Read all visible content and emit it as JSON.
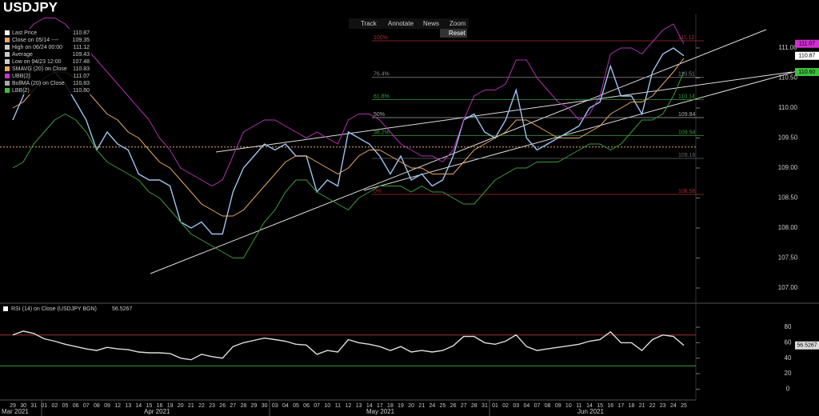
{
  "title": "USDJPY",
  "toolbar": [
    "Track",
    "Annotate",
    "News",
    "Zoom",
    "Reset"
  ],
  "chart_data": [
    {
      "type": "line",
      "categories": [
        "29",
        "30",
        "31",
        "01",
        "02",
        "05",
        "06",
        "07",
        "08",
        "09",
        "12",
        "13",
        "14",
        "15",
        "16",
        "19",
        "20",
        "21",
        "22",
        "23",
        "26",
        "27",
        "28",
        "29",
        "30",
        "03",
        "04",
        "05",
        "06",
        "07",
        "10",
        "11",
        "12",
        "13",
        "14",
        "17",
        "18",
        "19",
        "20",
        "21",
        "24",
        "25",
        "26",
        "27",
        "28",
        "31",
        "01",
        "02",
        "03",
        "04",
        "07",
        "08",
        "09",
        "10",
        "11",
        "14",
        "15",
        "16",
        "17",
        "18",
        "21",
        "22",
        "23",
        "24",
        "25"
      ],
      "months": [
        "Mar 2021",
        "Apr 2021",
        "May 2021",
        "Jun 2021"
      ],
      "series": [
        {
          "name": "Last Price",
          "color": "#9cc3f0",
          "values": [
            109.8,
            110.2,
            110.8,
            110.7,
            110.6,
            110.4,
            110.1,
            109.8,
            109.3,
            109.6,
            109.4,
            109.3,
            108.9,
            108.8,
            108.8,
            108.7,
            108.1,
            108.0,
            108.1,
            107.9,
            107.9,
            108.6,
            109.0,
            109.2,
            109.4,
            109.3,
            109.4,
            109.2,
            109.2,
            108.6,
            108.8,
            108.7,
            109.6,
            109.5,
            109.4,
            109.2,
            108.9,
            109.2,
            108.8,
            108.9,
            108.7,
            108.8,
            109.2,
            109.8,
            109.9,
            109.6,
            109.5,
            109.8,
            110.3,
            109.5,
            109.3,
            109.4,
            109.5,
            109.6,
            109.7,
            110.0,
            110.1,
            110.7,
            110.2,
            110.2,
            109.9,
            110.6,
            110.9,
            111.0,
            110.87
          ]
        },
        {
          "name": "SMAVG (20) on Close",
          "color": "#e8a860",
          "values": [
            110.0,
            110.1,
            110.3,
            110.5,
            110.6,
            110.6,
            110.5,
            110.3,
            110.1,
            109.9,
            109.8,
            109.6,
            109.5,
            109.3,
            109.1,
            109.0,
            108.8,
            108.6,
            108.4,
            108.3,
            108.2,
            108.2,
            108.3,
            108.5,
            108.7,
            108.9,
            109.1,
            109.2,
            109.2,
            109.1,
            109.0,
            108.9,
            109.0,
            109.2,
            109.3,
            109.3,
            109.2,
            109.1,
            109.0,
            109.0,
            108.9,
            108.9,
            108.9,
            109.1,
            109.3,
            109.4,
            109.5,
            109.6,
            109.8,
            109.8,
            109.7,
            109.6,
            109.5,
            109.5,
            109.5,
            109.6,
            109.7,
            109.9,
            110.0,
            110.1,
            110.1,
            110.2,
            110.4,
            110.6,
            110.83
          ]
        },
        {
          "name": "UBB(2)",
          "color": "#b030b0",
          "values": [
            110.9,
            111.2,
            111.4,
            111.5,
            111.5,
            111.4,
            111.2,
            111.0,
            110.8,
            110.6,
            110.4,
            110.2,
            110.0,
            109.8,
            109.5,
            109.3,
            109.0,
            108.9,
            108.8,
            108.7,
            108.8,
            109.2,
            109.6,
            109.7,
            109.8,
            109.8,
            109.7,
            109.6,
            109.5,
            109.6,
            109.5,
            109.4,
            109.8,
            109.9,
            109.9,
            109.8,
            109.6,
            109.4,
            109.3,
            109.2,
            109.2,
            109.1,
            109.3,
            109.8,
            110.2,
            110.3,
            110.3,
            110.4,
            110.8,
            110.8,
            110.5,
            110.3,
            110.1,
            110.0,
            109.8,
            109.9,
            110.2,
            110.9,
            111.0,
            111.0,
            110.9,
            111.1,
            111.3,
            111.4,
            111.07
          ]
        },
        {
          "name": "LBB(2)",
          "color": "#3c9a3c",
          "values": [
            109.0,
            109.1,
            109.4,
            109.6,
            109.8,
            109.9,
            109.8,
            109.6,
            109.3,
            109.1,
            109.0,
            108.9,
            108.8,
            108.6,
            108.5,
            108.3,
            108.1,
            107.9,
            107.8,
            107.7,
            107.6,
            107.5,
            107.5,
            107.8,
            108.1,
            108.3,
            108.6,
            108.8,
            108.8,
            108.6,
            108.5,
            108.4,
            108.3,
            108.5,
            108.6,
            108.7,
            108.7,
            108.7,
            108.6,
            108.7,
            108.6,
            108.6,
            108.5,
            108.4,
            108.4,
            108.6,
            108.8,
            108.9,
            109.0,
            109.0,
            109.1,
            109.1,
            109.1,
            109.2,
            109.3,
            109.4,
            109.4,
            109.3,
            109.4,
            109.6,
            109.8,
            109.8,
            109.9,
            110.2,
            110.6
          ]
        }
      ],
      "legend": [
        {
          "name": "Last Price",
          "value": 110.87,
          "color": "#ffffff"
        },
        {
          "name": "Close on 05/14 ----",
          "value": 109.35,
          "color": "#e8a860"
        },
        {
          "name": "High on 06/24 00:00",
          "value": 111.12,
          "color": "#cccccc"
        },
        {
          "name": "Average",
          "value": 109.43,
          "color": "#cccccc"
        },
        {
          "name": "Low on 04/23 12:00",
          "value": 107.48,
          "color": "#cccccc"
        },
        {
          "name": "SMAVG (20)  on Close",
          "value": 110.83,
          "color": "#e8a860"
        },
        {
          "name": "UBB(2)",
          "value": 111.07,
          "color": "#d030d0"
        },
        {
          "name": "BollMA (20)  on Close",
          "value": 110.83,
          "color": "#aaaaaa"
        },
        {
          "name": "LBB(2)",
          "value": {
            "value": 110.6,
            "label": "110.60"
          },
          "color": "#3cc03c"
        }
      ],
      "hline": {
        "value": 109.35,
        "color": "#e8a860"
      },
      "fib": [
        {
          "label": "100%",
          "value": 111.12,
          "color": "#a03030"
        },
        {
          "label": "76.4%",
          "value": 110.51,
          "color": "#888888"
        },
        {
          "label": "61.8%",
          "value": 110.14,
          "color": "#3c9a3c"
        },
        {
          "label": "50%",
          "value": 109.84,
          "color": "#aaaaaa"
        },
        {
          "label": "38.2%",
          "value": 109.54,
          "color": "#3c9a3c"
        },
        {
          "label": null,
          "value": 109.16,
          "color": "#666666"
        },
        {
          "label": "0%",
          "value": 108.56,
          "color": "#a03030"
        }
      ],
      "tags": [
        {
          "value": 111.07,
          "color": "#d030d0"
        },
        {
          "value": 110.87,
          "color": "#ffffff"
        },
        {
          "value": {
            "value": 110.6,
            "label": "110.60"
          },
          "color": "#3cc03c"
        }
      ],
      "ylim": [
        106.76,
        111.56
      ],
      "yticks": [
        {
          "value": 107,
          "label": "107.00"
        },
        {
          "value": 107.5,
          "label": "107.50"
        },
        {
          "value": 108,
          "label": "108.00"
        },
        {
          "value": 108.5,
          "label": "108.50"
        },
        {
          "value": 109,
          "label": "109.00"
        },
        {
          "value": 109.5,
          "label": "109.50"
        },
        {
          "value": 110,
          "label": "110.00"
        },
        {
          "value": 110.5,
          "label": "110.50"
        },
        {
          "value": 111,
          "label": "111.00"
        }
      ]
    },
    {
      "type": "line",
      "legend": "RSI (14)  on Close (USDJPY BGN)",
      "series": [
        {
          "name": "RSI (14)",
          "color": "#dddddd",
          "values": [
            70,
            75,
            72,
            65,
            62,
            58,
            55,
            52,
            50,
            54,
            52,
            51,
            48,
            47,
            47,
            46,
            40,
            38,
            45,
            42,
            40,
            55,
            60,
            63,
            66,
            64,
            62,
            58,
            57,
            45,
            50,
            48,
            64,
            60,
            58,
            55,
            50,
            55,
            48,
            50,
            48,
            50,
            56,
            68,
            68,
            60,
            58,
            62,
            70,
            55,
            50,
            52,
            54,
            56,
            58,
            62,
            64,
            74,
            60,
            60,
            50,
            64,
            70,
            68,
            56.5267
          ]
        }
      ],
      "levels": [
        {
          "value": 70,
          "color": "#a03030"
        },
        {
          "value": 30,
          "color": "#3c9a3c"
        }
      ],
      "ylim": [
        -14,
        110
      ],
      "yticks": [
        0,
        20,
        40,
        60,
        80
      ]
    }
  ]
}
